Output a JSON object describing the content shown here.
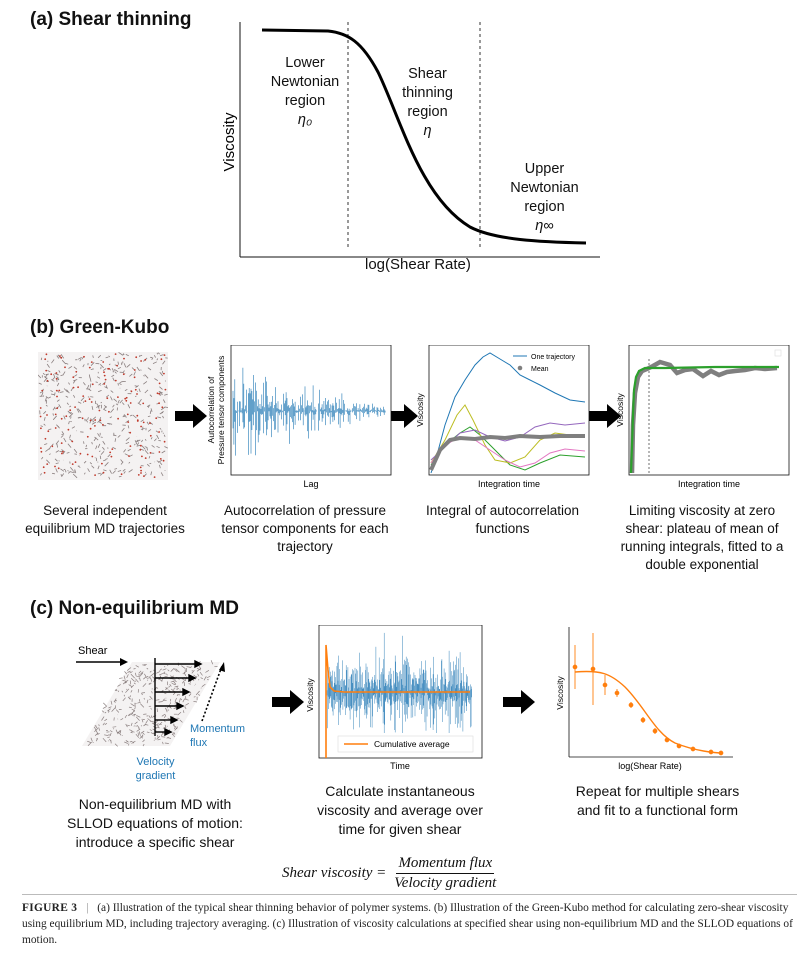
{
  "panel_a": {
    "title": "(a)  Shear thinning",
    "ylabel": "Viscosity",
    "xlabel": "log(Shear Rate)",
    "region_lower": [
      "Lower",
      "Newtonian",
      "region"
    ],
    "region_lower_sym": "η₀",
    "region_mid": [
      "Shear",
      "thinning",
      "region"
    ],
    "region_mid_sym": "η",
    "region_upper": [
      "Upper",
      "Newtonian",
      "region"
    ],
    "region_upper_sym": "η∞"
  },
  "panel_b": {
    "title": "(b)  Green-Kubo",
    "plot1_ylabel_1": "Autocorrelation of",
    "plot1_ylabel_2": "Pressure tensor components",
    "plot1_xlabel": "Lag",
    "plot2_ylabel": "Viscosity",
    "plot2_xlabel": "Integration time",
    "legend_one": "One trajectory",
    "legend_mean": "Mean",
    "plot3_ylabel": "Viscosity",
    "plot3_xlabel": "Integration time",
    "cap1": "Several independent equilibrium MD trajectories",
    "cap2": "Autocorrelation of pressure tensor components for each trajectory",
    "cap3": "Integral of autocorrelation functions",
    "cap4": "Limiting viscosity at zero shear: plateau of mean of running integrals, fitted to a double exponential"
  },
  "panel_c": {
    "title": "(c)  Non-equilibrium MD",
    "shear_label": "Shear",
    "momentum_flux": "Momentum flux",
    "velocity_gradient": "Velocity gradient",
    "plot1_ylabel": "Viscosity",
    "plot1_xlabel": "Time",
    "legend_cum": "Cumulative average",
    "plot2_ylabel": "Viscosity",
    "plot2_xlabel": "log(Shear Rate)",
    "cap1": "Non-equilibrium MD with SLLOD equations of motion: introduce a specific shear",
    "cap2": "Calculate instantaneous viscosity and average over time for given shear",
    "cap3": "Repeat for multiple shears and fit to a functional form",
    "formula_lhs": "Shear viscosity =",
    "formula_num": "Momentum flux",
    "formula_den": "Velocity gradient"
  },
  "caption": {
    "label": "FIGURE 3",
    "sep": "|",
    "text": "(a) Illustration of the typical shear thinning behavior of polymer systems. (b) Illustration of the Green-Kubo method for calculating zero-shear viscosity using equilibrium MD, including trajectory averaging. (c) Illustration of viscosity calculations at specified shear using non-equilibrium MD and the SLLOD equations of motion."
  },
  "colors": {
    "blue": "#1f77b4",
    "orange": "#ff7f0e",
    "green": "#2ca02c",
    "grey": "#7f7f7f",
    "purple": "#9467bd",
    "olive": "#bcbd22",
    "pink": "#e377c2",
    "mol": "#8a7f7f"
  },
  "icons": {
    "arrow": "black-right-arrow-icon"
  }
}
